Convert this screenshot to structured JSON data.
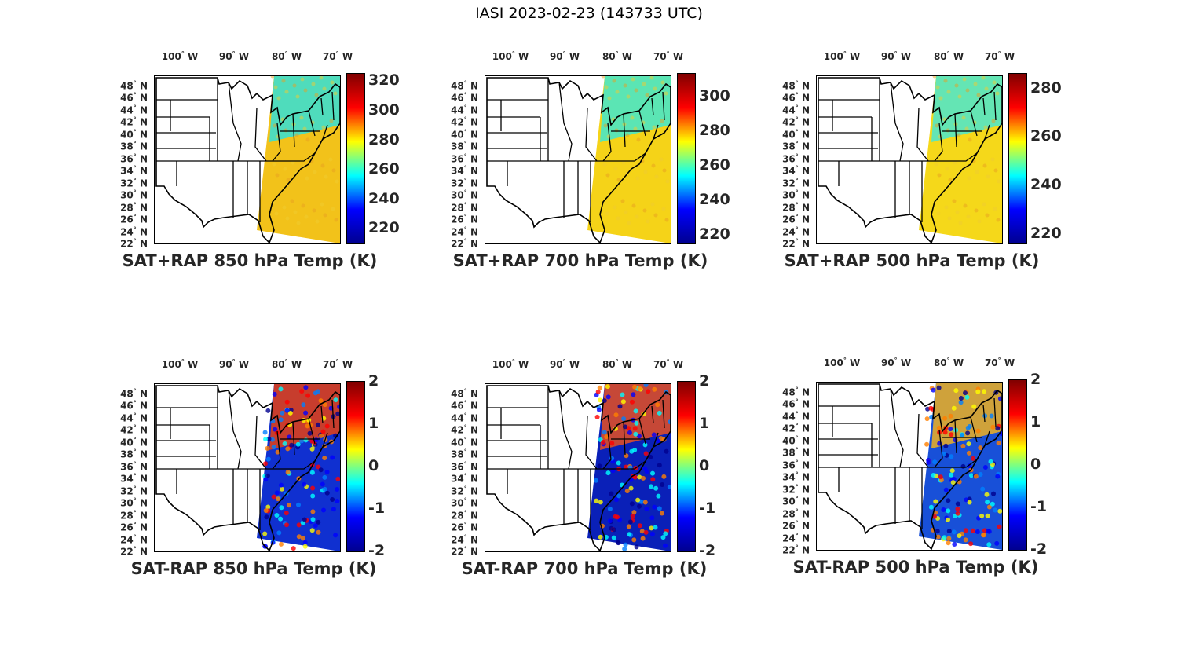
{
  "figure_title": "IASI 2023-02-23 (143733 UTC)",
  "lon_labels": [
    {
      "deg": "100",
      "hemi": "W"
    },
    {
      "deg": "90",
      "hemi": "W"
    },
    {
      "deg": "80",
      "hemi": "W"
    },
    {
      "deg": "70",
      "hemi": "W"
    }
  ],
  "lat_labels": [
    {
      "deg": "48",
      "hemi": "N"
    },
    {
      "deg": "46",
      "hemi": "N"
    },
    {
      "deg": "44",
      "hemi": "N"
    },
    {
      "deg": "42",
      "hemi": "N"
    },
    {
      "deg": "40",
      "hemi": "N"
    },
    {
      "deg": "38",
      "hemi": "N"
    },
    {
      "deg": "36",
      "hemi": "N"
    },
    {
      "deg": "34",
      "hemi": "N"
    },
    {
      "deg": "32",
      "hemi": "N"
    },
    {
      "deg": "30",
      "hemi": "N"
    },
    {
      "deg": "28",
      "hemi": "N"
    },
    {
      "deg": "26",
      "hemi": "N"
    },
    {
      "deg": "24",
      "hemi": "N"
    },
    {
      "deg": "22",
      "hemi": "N"
    }
  ],
  "colormap": [
    "#00008f",
    "#0000ff",
    "#00ffff",
    "#ffff00",
    "#ff0000",
    "#800000"
  ],
  "panels": [
    {
      "title": "SAT+RAP 850 hPa Temp (K)",
      "type": "sum",
      "fill": "#f2c21a",
      "north_fill": "#33e0d9",
      "cbar_ticks": [
        "320",
        "300",
        "280",
        "260",
        "240",
        "220"
      ],
      "cbar_range": [
        210,
        325
      ],
      "tick_values": [
        320,
        300,
        280,
        260,
        240,
        220
      ]
    },
    {
      "title": "SAT+RAP 700 hPa Temp (K)",
      "type": "sum",
      "fill": "#f5d318",
      "north_fill": "#40e8d0",
      "cbar_ticks": [
        "300",
        "280",
        "260",
        "240",
        "220"
      ],
      "cbar_range": [
        215,
        313
      ],
      "tick_values": [
        300,
        280,
        260,
        240,
        220
      ]
    },
    {
      "title": "SAT+RAP 500 hPa Temp (K)",
      "type": "sum",
      "fill": "#f5d81a",
      "north_fill": "#4ae8d0",
      "cbar_ticks": [
        "280",
        "260",
        "240",
        "220"
      ],
      "cbar_range": [
        216,
        286
      ],
      "tick_values": [
        280,
        260,
        240,
        220
      ]
    },
    {
      "title": "SAT-RAP 850 hPa Temp (K)",
      "type": "diff",
      "fill": "#1030d0",
      "north_fill": "#e84010",
      "cbar_ticks": [
        "2",
        "1",
        "0",
        "-1",
        "-2"
      ],
      "cbar_range": [
        -2,
        2
      ],
      "tick_values": [
        2,
        1,
        0,
        -1,
        -2
      ]
    },
    {
      "title": "SAT-RAP 700 hPa Temp (K)",
      "type": "diff",
      "fill": "#0a20b8",
      "north_fill": "#e85020",
      "cbar_ticks": [
        "2",
        "1",
        "0",
        "-1",
        "-2"
      ],
      "cbar_range": [
        -2,
        2
      ],
      "tick_values": [
        2,
        1,
        0,
        -1,
        -2
      ]
    },
    {
      "title": "SAT-RAP 500 hPa Temp (K)",
      "type": "diff",
      "fill": "#1850d8",
      "north_fill": "#f0b020",
      "cbar_ticks": [
        "2",
        "1",
        "0",
        "-1",
        "-2"
      ],
      "cbar_range": [
        -2,
        2
      ],
      "tick_values": [
        2,
        1,
        0,
        -1,
        -2
      ]
    }
  ]
}
